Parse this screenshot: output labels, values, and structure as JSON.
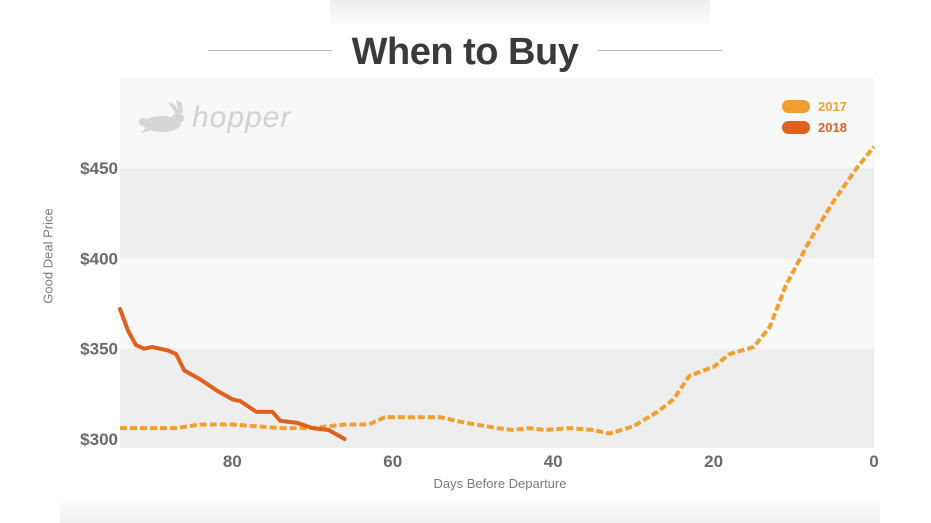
{
  "title": "When to Buy",
  "logo": {
    "text": "hopper",
    "icon": "rabbit-icon"
  },
  "colors": {
    "series_2017": "#f0a030",
    "series_2018": "#e06020",
    "band_dark": "#eeeeee",
    "band_light": "#f8f8f8"
  },
  "chart_data": {
    "type": "line",
    "xlabel": "Days Before Departure",
    "ylabel": "Good Deal Price",
    "xlim": [
      94,
      0
    ],
    "ylim": [
      295,
      500
    ],
    "x_ticks": [
      80,
      60,
      40,
      20,
      0
    ],
    "x_tick_labels": [
      "80",
      "60",
      "40",
      "20",
      "0"
    ],
    "y_ticks": [
      300,
      350,
      400,
      450
    ],
    "y_tick_labels": [
      "$300",
      "$350",
      "$400",
      "$450"
    ],
    "legend_position": "top-right",
    "series": [
      {
        "name": "2017",
        "style": "dashed",
        "points": [
          [
            94,
            306
          ],
          [
            90,
            306
          ],
          [
            87,
            306
          ],
          [
            84,
            308
          ],
          [
            80,
            308
          ],
          [
            77,
            307
          ],
          [
            74,
            306
          ],
          [
            70,
            306
          ],
          [
            66,
            308
          ],
          [
            63,
            308
          ],
          [
            61,
            312
          ],
          [
            58,
            312
          ],
          [
            54,
            312
          ],
          [
            51,
            309
          ],
          [
            47,
            306
          ],
          [
            45,
            305
          ],
          [
            43,
            306
          ],
          [
            41,
            305
          ],
          [
            38,
            306
          ],
          [
            35,
            305
          ],
          [
            33,
            303
          ],
          [
            30,
            307
          ],
          [
            27,
            315
          ],
          [
            25,
            322
          ],
          [
            23,
            335
          ],
          [
            20,
            340
          ],
          [
            18,
            347
          ],
          [
            15,
            351
          ],
          [
            13,
            362
          ],
          [
            11,
            385
          ],
          [
            8,
            410
          ],
          [
            5,
            432
          ],
          [
            2,
            451
          ],
          [
            0,
            462
          ]
        ]
      },
      {
        "name": "2018",
        "style": "solid",
        "points": [
          [
            94,
            372
          ],
          [
            93,
            360
          ],
          [
            92,
            352
          ],
          [
            91,
            350
          ],
          [
            90,
            351
          ],
          [
            88,
            349
          ],
          [
            87,
            347
          ],
          [
            86,
            338
          ],
          [
            84,
            333
          ],
          [
            82,
            327
          ],
          [
            80,
            322
          ],
          [
            79,
            321
          ],
          [
            77,
            315
          ],
          [
            75,
            315
          ],
          [
            74,
            310
          ],
          [
            72,
            309
          ],
          [
            70,
            306
          ],
          [
            68,
            305
          ],
          [
            66,
            300
          ]
        ]
      }
    ]
  }
}
